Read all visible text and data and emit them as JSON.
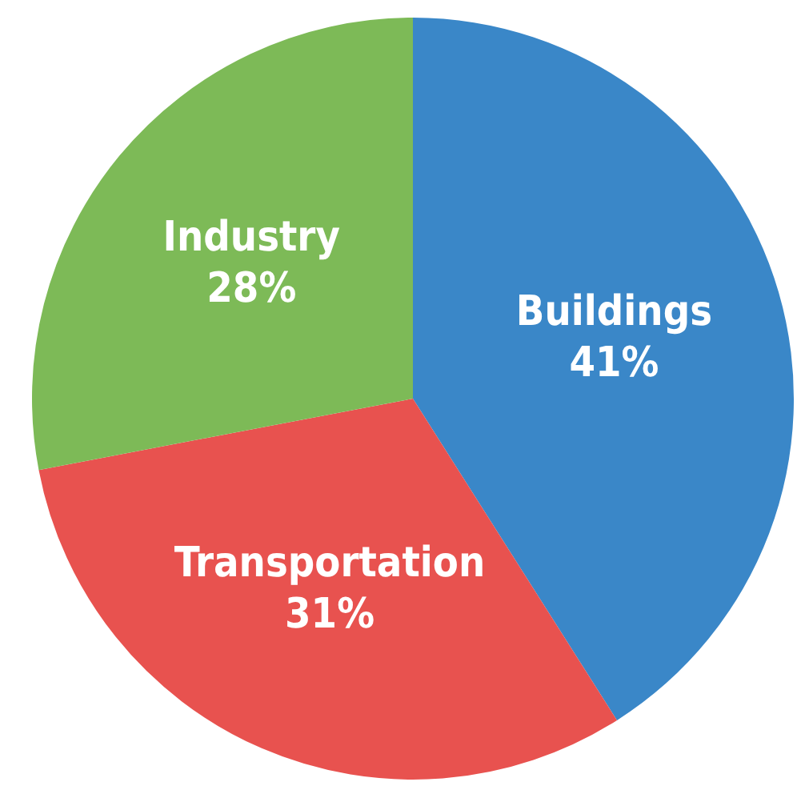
{
  "chart_data": {
    "type": "pie",
    "categories": [
      "Buildings",
      "Transportation",
      "Industry"
    ],
    "values": [
      41,
      31,
      28
    ],
    "colors": [
      "#3a87c8",
      "#e8524f",
      "#7dba57"
    ],
    "value_labels": [
      "41%",
      "31%",
      "28%"
    ],
    "legend": false
  }
}
